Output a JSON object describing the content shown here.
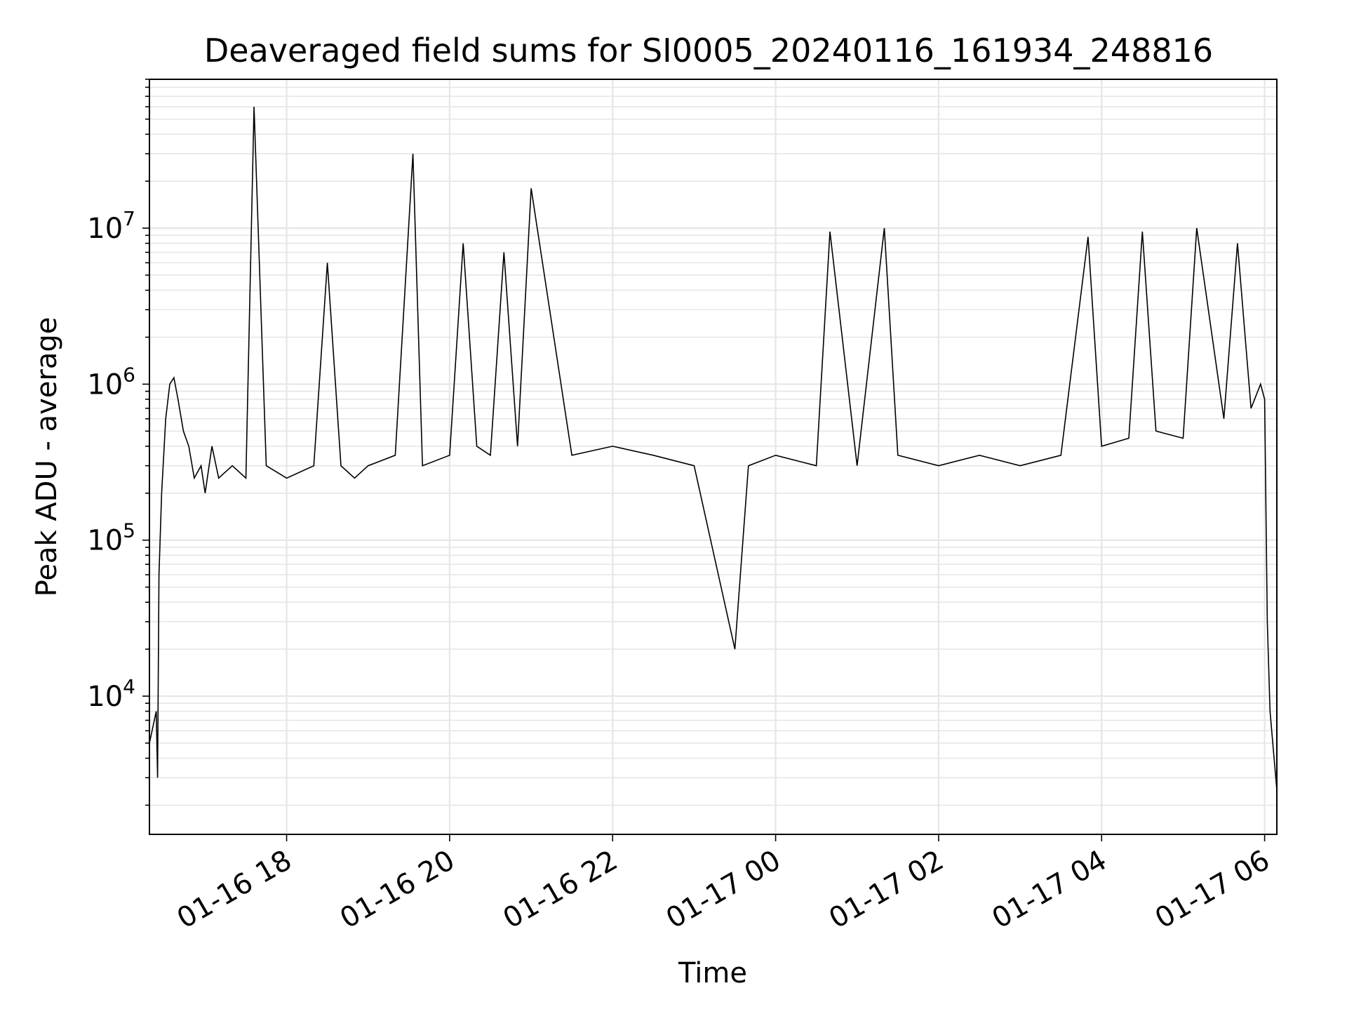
{
  "chart_data": {
    "type": "line",
    "title": "Deaveraged field sums for SI0005_20240116_161934_248816",
    "xlabel": "Time",
    "ylabel": "Peak ADU - average",
    "yscale": "log",
    "grid": true,
    "legend": "none",
    "line_color": "#000000",
    "grid_color": "#e6e6e6",
    "x_ticks": [
      "01-16 18",
      "01-16 20",
      "01-16 22",
      "01-17 00",
      "01-17 02",
      "01-17 04",
      "01-17 06"
    ],
    "x_tick_values": [
      "2024-01-16 18:00",
      "2024-01-16 20:00",
      "2024-01-16 22:00",
      "2024-01-17 00:00",
      "2024-01-17 02:00",
      "2024-01-17 04:00",
      "2024-01-17 06:00"
    ],
    "xlim": [
      "2024-01-16 16:19",
      "2024-01-17 06:09"
    ],
    "y_ticks": [
      {
        "base": "10",
        "exp": "4",
        "value": 10000
      },
      {
        "base": "10",
        "exp": "5",
        "value": 100000
      },
      {
        "base": "10",
        "exp": "6",
        "value": 1000000
      },
      {
        "base": "10",
        "exp": "7",
        "value": 10000000
      }
    ],
    "ylim": [
      1300,
      90000000
    ],
    "series": [
      {
        "x": [
          "2024-01-16 16:19",
          "2024-01-16 16:24",
          "2024-01-16 16:25",
          "2024-01-16 16:26",
          "2024-01-16 16:28",
          "2024-01-16 16:31",
          "2024-01-16 16:34",
          "2024-01-16 16:37",
          "2024-01-16 16:40",
          "2024-01-16 16:44",
          "2024-01-16 16:48",
          "2024-01-16 16:52",
          "2024-01-16 16:57",
          "2024-01-16 17:00",
          "2024-01-16 17:05",
          "2024-01-16 17:10",
          "2024-01-16 17:20",
          "2024-01-16 17:30",
          "2024-01-16 17:36",
          "2024-01-16 17:45",
          "2024-01-16 18:00",
          "2024-01-16 18:20",
          "2024-01-16 18:30",
          "2024-01-16 18:40",
          "2024-01-16 18:50",
          "2024-01-16 19:00",
          "2024-01-16 19:20",
          "2024-01-16 19:33",
          "2024-01-16 19:40",
          "2024-01-16 20:00",
          "2024-01-16 20:10",
          "2024-01-16 20:20",
          "2024-01-16 20:30",
          "2024-01-16 20:40",
          "2024-01-16 20:50",
          "2024-01-16 21:00",
          "2024-01-16 21:30",
          "2024-01-16 22:00",
          "2024-01-16 22:30",
          "2024-01-16 23:00",
          "2024-01-16 23:30",
          "2024-01-16 23:40",
          "2024-01-17 00:00",
          "2024-01-17 00:30",
          "2024-01-17 00:40",
          "2024-01-17 01:00",
          "2024-01-17 01:20",
          "2024-01-17 01:30",
          "2024-01-17 02:00",
          "2024-01-17 02:30",
          "2024-01-17 03:00",
          "2024-01-17 03:30",
          "2024-01-17 03:50",
          "2024-01-17 04:00",
          "2024-01-17 04:20",
          "2024-01-17 04:30",
          "2024-01-17 04:40",
          "2024-01-17 05:00",
          "2024-01-17 05:10",
          "2024-01-17 05:30",
          "2024-01-17 05:40",
          "2024-01-17 05:50",
          "2024-01-17 05:57",
          "2024-01-17 06:00",
          "2024-01-17 06:02",
          "2024-01-17 06:04",
          "2024-01-17 06:06",
          "2024-01-17 06:09"
        ],
        "y": [
          5000,
          8000,
          3000,
          60000,
          200000,
          600000,
          1000000,
          1100000,
          800000,
          500000,
          400000,
          250000,
          300000,
          200000,
          400000,
          250000,
          300000,
          250000,
          60000000,
          300000,
          250000,
          300000,
          6000000,
          300000,
          250000,
          300000,
          350000,
          30000000,
          300000,
          350000,
          8000000,
          400000,
          350000,
          7000000,
          400000,
          18000000,
          350000,
          400000,
          350000,
          300000,
          20000,
          300000,
          350000,
          300000,
          9500000,
          300000,
          10000000,
          350000,
          300000,
          350000,
          300000,
          350000,
          8800000,
          400000,
          450000,
          9500000,
          500000,
          450000,
          10000000,
          600000,
          8000000,
          700000,
          1000000,
          800000,
          30000,
          8000,
          5000,
          2500
        ]
      }
    ]
  }
}
